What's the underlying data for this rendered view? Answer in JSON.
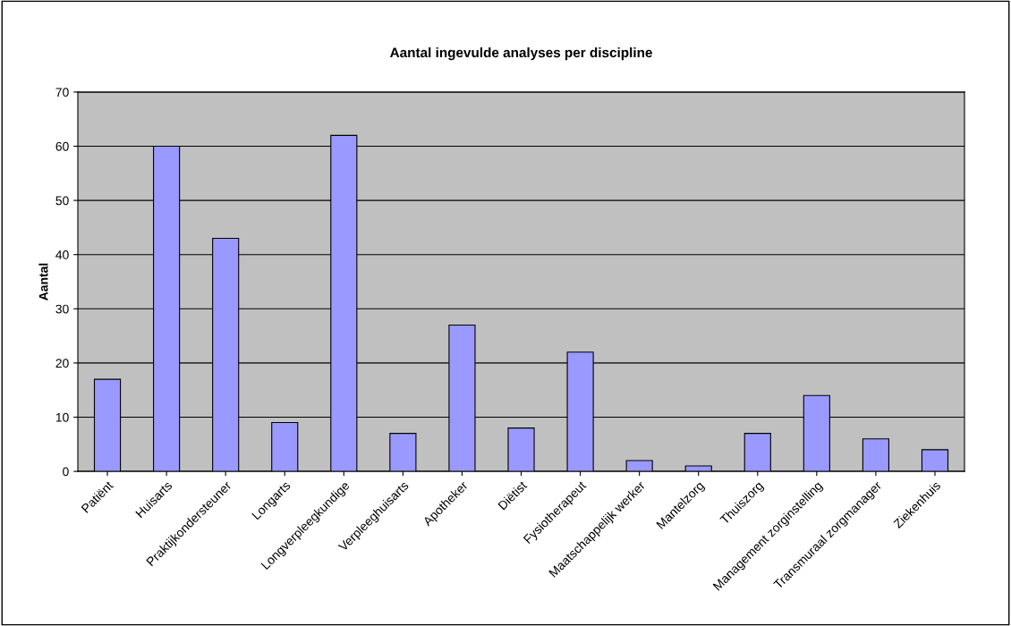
{
  "chart_data": {
    "type": "bar",
    "title": "Aantal ingevulde analyses per discipline",
    "ylabel": "Aantal",
    "categories": [
      "Patiënt",
      "Huisarts",
      "Praktijkondersteuner",
      "Longarts",
      "Longverpleegkundige",
      "Verpleeghuisarts",
      "Apotheker",
      "Diëtist",
      "Fysiotherapeut",
      "Maatschappelijk werker",
      "Mantelzorg",
      "Thuiszorg",
      "Management zorginstelling",
      "Transmuraal zorgmanager",
      "Ziekenhuis"
    ],
    "values": [
      17,
      60,
      43,
      9,
      62,
      7,
      27,
      8,
      22,
      2,
      1,
      7,
      14,
      6,
      4
    ],
    "color": "#9999ff",
    "ylim": [
      0,
      70
    ],
    "yticks": [
      0,
      10,
      20,
      30,
      40,
      50,
      60,
      70
    ],
    "grid": "y",
    "legend": false
  }
}
